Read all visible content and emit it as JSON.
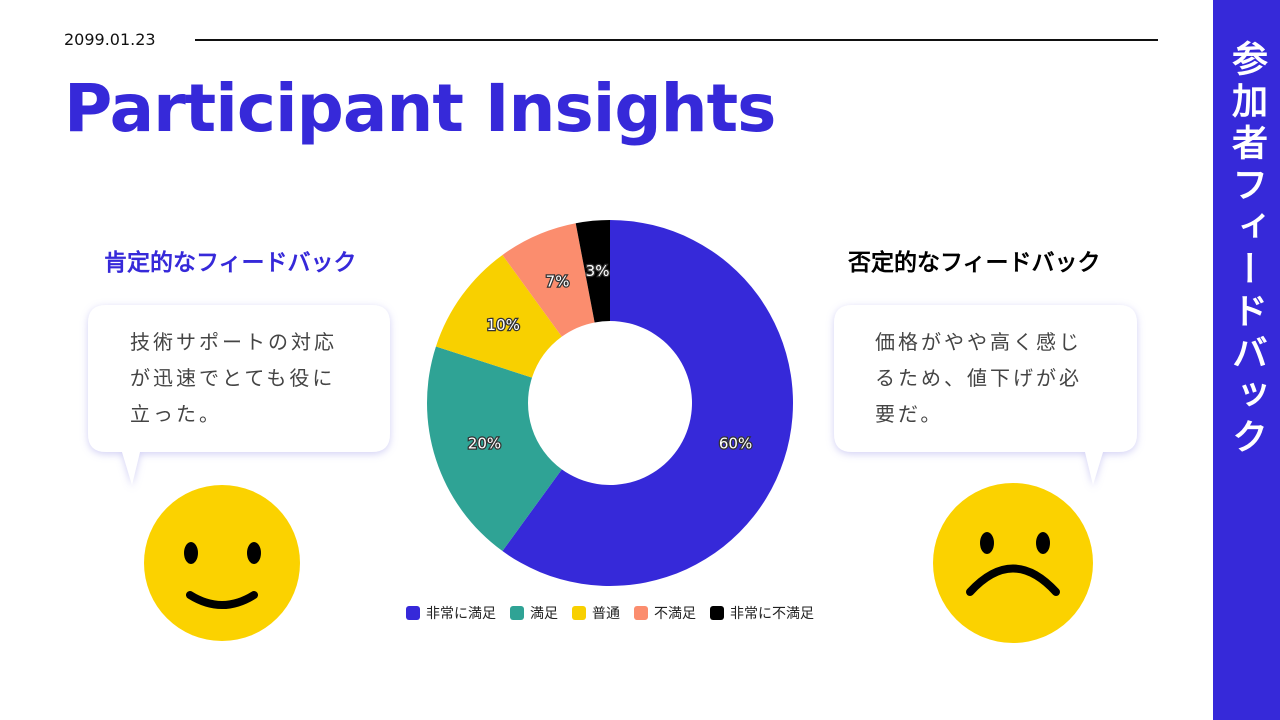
{
  "date": "2099.01.23",
  "title": "Participant Insights",
  "sidebar": "参加者フィードバック",
  "positive": {
    "heading": "肯定的なフィードバック",
    "text": "技術サポートの対応が迅速でとても役に立った。"
  },
  "negative": {
    "heading": "否定的なフィードバック",
    "text": "価格がやや高く感じるため、値下げが必要だ。"
  },
  "chart_data": {
    "type": "donut",
    "categories": [
      "非常に満足",
      "満足",
      "普通",
      "不満足",
      "非常に不満足"
    ],
    "values": [
      60,
      20,
      10,
      7,
      3
    ],
    "value_labels": [
      "60%",
      "20%",
      "10%",
      "7%",
      "3%"
    ],
    "colors": [
      "#3629d9",
      "#2fa395",
      "#f8d000",
      "#fb8d6e",
      "#000000"
    ]
  }
}
